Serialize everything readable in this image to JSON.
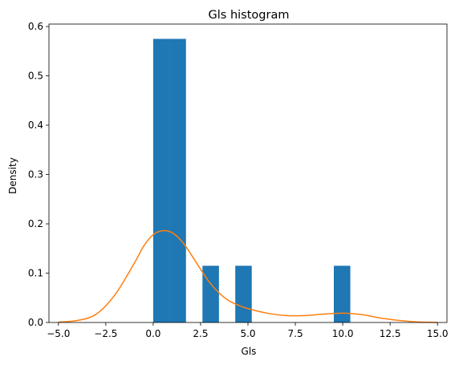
{
  "chart_data": {
    "type": "histogram",
    "title": "Gls histogram",
    "xlabel": "Gls",
    "ylabel": "Density",
    "xlim": [
      -5.5,
      15.5
    ],
    "ylim": [
      0,
      0.605
    ],
    "x_ticks": [
      -5.0,
      -2.5,
      0.0,
      2.5,
      5.0,
      7.5,
      10.0,
      12.5,
      15.0
    ],
    "y_ticks": [
      0.0,
      0.1,
      0.2,
      0.3,
      0.4,
      0.5,
      0.6
    ],
    "x_tick_labels": [
      "−5.0",
      "−2.5",
      "0.0",
      "2.5",
      "5.0",
      "7.5",
      "10.0",
      "12.5",
      "15.0"
    ],
    "y_tick_labels": [
      "0.0",
      "0.1",
      "0.2",
      "0.3",
      "0.4",
      "0.5",
      "0.6"
    ],
    "grid": false,
    "series": [
      {
        "type": "bar",
        "color": "#1f77b4",
        "bins": [
          {
            "x0": 0.0,
            "x1": 0.87,
            "value": 0.575
          },
          {
            "x0": 0.87,
            "x1": 1.73,
            "value": 0.575
          },
          {
            "x0": 2.6,
            "x1": 3.47,
            "value": 0.115
          },
          {
            "x0": 4.33,
            "x1": 5.2,
            "value": 0.115
          },
          {
            "x0": 9.53,
            "x1": 10.4,
            "value": 0.115
          }
        ]
      },
      {
        "type": "line",
        "color": "#ff7f0e",
        "x": [
          -5.0,
          -4.0,
          -3.0,
          -2.0,
          -1.0,
          -0.5,
          0.0,
          0.5,
          1.0,
          1.5,
          2.0,
          2.5,
          3.0,
          3.5,
          4.0,
          4.5,
          5.0,
          6.0,
          7.0,
          8.0,
          9.0,
          10.0,
          11.0,
          12.0,
          13.0,
          14.0,
          15.0
        ],
        "y": [
          0.001,
          0.004,
          0.017,
          0.057,
          0.12,
          0.155,
          0.178,
          0.186,
          0.182,
          0.165,
          0.138,
          0.108,
          0.08,
          0.059,
          0.044,
          0.035,
          0.028,
          0.019,
          0.014,
          0.014,
          0.017,
          0.019,
          0.016,
          0.009,
          0.004,
          0.001,
          0.0
        ]
      }
    ]
  }
}
